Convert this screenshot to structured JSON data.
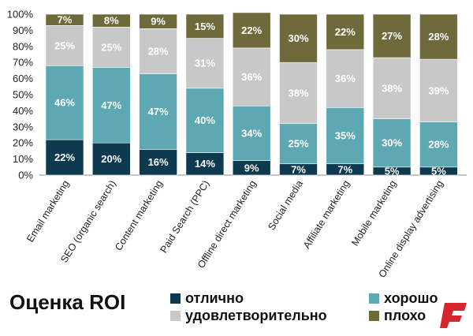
{
  "title": "Оценка ROI",
  "colors": {
    "excellent": "#0d3a4f",
    "good": "#5da8b3",
    "satisfactory": "#c8c8c8",
    "bad": "#6f6a3c",
    "logo": "#d6262f"
  },
  "chart_data": {
    "type": "bar",
    "stacked": true,
    "stack_mode": "percent",
    "ylim": [
      0,
      100
    ],
    "yticks": [
      "0%",
      "10%",
      "20%",
      "30%",
      "40%",
      "50%",
      "60%",
      "70%",
      "80%",
      "90%",
      "100%"
    ],
    "categories": [
      "Email marketing",
      "SEO (organic search)",
      "Content marketing",
      "Paid Search (PPC)",
      "Offline direct marketing",
      "Social media",
      "Affiliate marketing",
      "Mobile marketing",
      "Online display advertising"
    ],
    "series": [
      {
        "name": "отлично",
        "key": "excellent",
        "values": [
          22,
          20,
          16,
          14,
          9,
          7,
          7,
          5,
          5
        ],
        "labels": [
          "22%",
          "20%",
          "16%",
          "14%",
          "9%",
          "7%",
          "7%",
          "5%",
          "5%"
        ]
      },
      {
        "name": "хорошо",
        "key": "good",
        "values": [
          46,
          47,
          47,
          40,
          34,
          25,
          35,
          30,
          28
        ],
        "labels": [
          "46%",
          "47%",
          "47%",
          "40%",
          "34%",
          "25%",
          "35%",
          "30%",
          "28%"
        ]
      },
      {
        "name": "удовлетворительно",
        "key": "satisfactory",
        "values": [
          25,
          25,
          28,
          31,
          36,
          38,
          36,
          38,
          39
        ],
        "labels": [
          "25%",
          "25%",
          "28%",
          "31%",
          "36%",
          "38%",
          "36%",
          "38%",
          "39%"
        ]
      },
      {
        "name": "плохо",
        "key": "bad",
        "values": [
          7,
          8,
          9,
          15,
          22,
          30,
          22,
          27,
          28
        ],
        "labels": [
          "7%",
          "8%",
          "9%",
          "15%",
          "22%",
          "30%",
          "22%",
          "27%",
          "28%"
        ]
      }
    ],
    "legend": {
      "position": "bottom-right",
      "items": [
        {
          "label": "отлично",
          "key": "excellent"
        },
        {
          "label": "хорошо",
          "key": "good"
        },
        {
          "label": "удовлетворительно",
          "key": "satisfactory"
        },
        {
          "label": "плохо",
          "key": "bad"
        }
      ]
    }
  },
  "logo": {
    "icon": "brand-logo-icon"
  }
}
